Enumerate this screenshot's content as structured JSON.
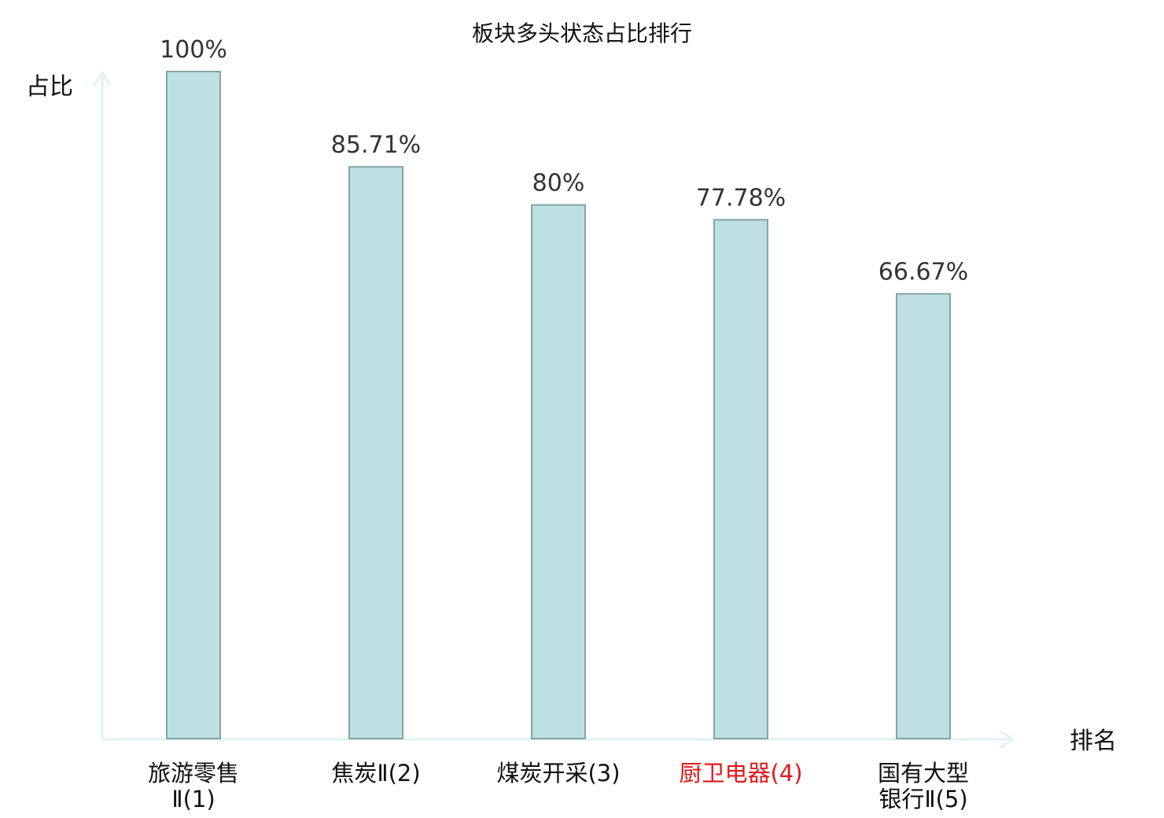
{
  "chart_data": {
    "type": "bar",
    "title": "板块多头状态占比排行",
    "ylabel": "占比",
    "xlabel": "排名",
    "categories": [
      {
        "lines": [
          "旅游零售",
          "Ⅱ(1)"
        ]
      },
      {
        "lines": [
          "焦炭Ⅱ(2)"
        ]
      },
      {
        "lines": [
          "煤炭开采(3)"
        ]
      },
      {
        "lines": [
          "厨卫电器(4)"
        ],
        "highlight": true
      },
      {
        "lines": [
          "国有大型",
          "银行Ⅱ(5)"
        ]
      }
    ],
    "values": [
      100,
      85.71,
      80,
      77.78,
      66.67
    ],
    "value_labels": [
      "100%",
      "85.71%",
      "80%",
      "77.78%",
      "66.67%"
    ],
    "ylim": [
      0,
      100
    ],
    "grid": false,
    "colors": {
      "bar_fill": "#bde1e2",
      "bar_stroke": "#86a3a4",
      "axis": "#def3f0",
      "highlight_text": "#e0191b",
      "label_text": "#111111"
    }
  }
}
